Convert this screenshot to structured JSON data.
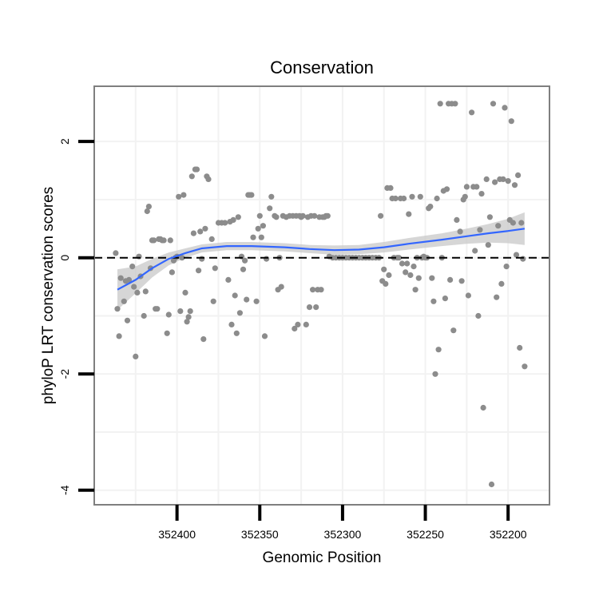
{
  "chart_data": {
    "type": "scatter",
    "title": "Conservation",
    "xlabel": "Genomic Position",
    "ylabel": "phyloP LRT conservation scores",
    "x_reversed": true,
    "xlim": [
      352450,
      352175
    ],
    "ylim": [
      -4.25,
      2.95
    ],
    "x_ticks": [
      352400,
      352350,
      352300,
      352250,
      352200
    ],
    "x_tick_labels": [
      "352400",
      "352350",
      "352300",
      "352250",
      "352200"
    ],
    "y_ticks": [
      2,
      0,
      -2,
      -4
    ],
    "y_tick_labels": [
      "2",
      "0",
      "-2",
      "-4"
    ],
    "reference_line": 0,
    "grid": true,
    "colors": {
      "points": "#8c8c8c",
      "smooth_line": "#3366ff",
      "confidence_band": "#c8c8c8",
      "panel_border": "#7f7f7f",
      "grid": "#f2f2f2"
    },
    "smooth": {
      "x": [
        352436,
        352425,
        352415,
        352405,
        352395,
        352385,
        352370,
        352355,
        352335,
        352320,
        352305,
        352290,
        352275,
        352260,
        352240,
        352225,
        352212,
        352200,
        352190
      ],
      "y": [
        -0.55,
        -0.38,
        -0.18,
        -0.02,
        0.08,
        0.16,
        0.2,
        0.2,
        0.18,
        0.15,
        0.13,
        0.14,
        0.18,
        0.24,
        0.31,
        0.37,
        0.42,
        0.46,
        0.5
      ],
      "upper": [
        -0.2,
        -0.15,
        -0.02,
        0.09,
        0.16,
        0.23,
        0.27,
        0.27,
        0.25,
        0.22,
        0.21,
        0.22,
        0.27,
        0.34,
        0.42,
        0.5,
        0.58,
        0.67,
        0.78
      ],
      "lower": [
        -0.9,
        -0.61,
        -0.34,
        -0.13,
        0.0,
        0.09,
        0.13,
        0.13,
        0.11,
        0.08,
        0.05,
        0.06,
        0.09,
        0.14,
        0.2,
        0.24,
        0.26,
        0.25,
        0.22
      ]
    },
    "points": [
      {
        "x": 352437,
        "y": 0.08
      },
      {
        "x": 352436,
        "y": -0.88
      },
      {
        "x": 352435,
        "y": -1.35
      },
      {
        "x": 352434,
        "y": -0.35
      },
      {
        "x": 352432,
        "y": -0.75
      },
      {
        "x": 352431,
        "y": -0.4
      },
      {
        "x": 352430,
        "y": -1.08
      },
      {
        "x": 352429,
        "y": -0.38
      },
      {
        "x": 352427,
        "y": -0.15
      },
      {
        "x": 352426,
        "y": -0.5
      },
      {
        "x": 352425,
        "y": -1.7
      },
      {
        "x": 352424,
        "y": -0.6
      },
      {
        "x": 352423,
        "y": 0.02
      },
      {
        "x": 352422,
        "y": -0.32
      },
      {
        "x": 352420,
        "y": -1.0
      },
      {
        "x": 352419,
        "y": -0.58
      },
      {
        "x": 352418,
        "y": 0.8
      },
      {
        "x": 352417,
        "y": 0.88
      },
      {
        "x": 352416,
        "y": -0.18
      },
      {
        "x": 352415,
        "y": 0.3
      },
      {
        "x": 352414,
        "y": 0.3
      },
      {
        "x": 352413,
        "y": -0.88
      },
      {
        "x": 352412,
        "y": -0.88
      },
      {
        "x": 352411,
        "y": 0.32
      },
      {
        "x": 352410,
        "y": 0.32
      },
      {
        "x": 352409,
        "y": 0.3
      },
      {
        "x": 352408,
        "y": 0.3
      },
      {
        "x": 352406,
        "y": -1.3
      },
      {
        "x": 352405,
        "y": -0.98
      },
      {
        "x": 352404,
        "y": 0.3
      },
      {
        "x": 352403,
        "y": -0.25
      },
      {
        "x": 352402,
        "y": -0.05
      },
      {
        "x": 352401,
        "y": 0.0
      },
      {
        "x": 352400,
        "y": 0.02
      },
      {
        "x": 352399,
        "y": 1.05
      },
      {
        "x": 352398,
        "y": -0.92
      },
      {
        "x": 352397,
        "y": 0.0
      },
      {
        "x": 352396,
        "y": 1.08
      },
      {
        "x": 352395,
        "y": -0.6
      },
      {
        "x": 352394,
        "y": -1.1
      },
      {
        "x": 352393,
        "y": -1.02
      },
      {
        "x": 352392,
        "y": -0.92
      },
      {
        "x": 352391,
        "y": 1.4
      },
      {
        "x": 352390,
        "y": 0.42
      },
      {
        "x": 352389,
        "y": 1.52
      },
      {
        "x": 352388,
        "y": 1.52
      },
      {
        "x": 352387,
        "y": -0.22
      },
      {
        "x": 352386,
        "y": 0.45
      },
      {
        "x": 352385,
        "y": -0.02
      },
      {
        "x": 352384,
        "y": -1.4
      },
      {
        "x": 352383,
        "y": 0.5
      },
      {
        "x": 352382,
        "y": 1.4
      },
      {
        "x": 352381,
        "y": 1.35
      },
      {
        "x": 352379,
        "y": 0.32
      },
      {
        "x": 352378,
        "y": -0.75
      },
      {
        "x": 352377,
        "y": -0.18
      },
      {
        "x": 352375,
        "y": 0.6
      },
      {
        "x": 352373,
        "y": 0.6
      },
      {
        "x": 352371,
        "y": 0.6
      },
      {
        "x": 352369,
        "y": -0.38
      },
      {
        "x": 352368,
        "y": 0.62
      },
      {
        "x": 352367,
        "y": -1.15
      },
      {
        "x": 352366,
        "y": 0.65
      },
      {
        "x": 352365,
        "y": -0.65
      },
      {
        "x": 352364,
        "y": -1.3
      },
      {
        "x": 352363,
        "y": 0.7
      },
      {
        "x": 352362,
        "y": -0.95
      },
      {
        "x": 352361,
        "y": 0.02
      },
      {
        "x": 352360,
        "y": -0.2
      },
      {
        "x": 352359,
        "y": -0.05
      },
      {
        "x": 352358,
        "y": -0.72
      },
      {
        "x": 352357,
        "y": 1.08
      },
      {
        "x": 352356,
        "y": 1.08
      },
      {
        "x": 352355,
        "y": 1.08
      },
      {
        "x": 352354,
        "y": 0.35
      },
      {
        "x": 352352,
        "y": -0.75
      },
      {
        "x": 352351,
        "y": 0.5
      },
      {
        "x": 352350,
        "y": 0.72
      },
      {
        "x": 352349,
        "y": 0.35
      },
      {
        "x": 352348,
        "y": 0.55
      },
      {
        "x": 352347,
        "y": -1.35
      },
      {
        "x": 352346,
        "y": -0.02
      },
      {
        "x": 352344,
        "y": 0.85
      },
      {
        "x": 352343,
        "y": 1.05
      },
      {
        "x": 352341,
        "y": 0.72
      },
      {
        "x": 352340,
        "y": 0.7
      },
      {
        "x": 352339,
        "y": -0.55
      },
      {
        "x": 352338,
        "y": 0.0
      },
      {
        "x": 352337,
        "y": -0.5
      },
      {
        "x": 352336,
        "y": 0.72
      },
      {
        "x": 352334,
        "y": 0.7
      },
      {
        "x": 352332,
        "y": 0.72
      },
      {
        "x": 352330,
        "y": 0.72
      },
      {
        "x": 352329,
        "y": -1.22
      },
      {
        "x": 352328,
        "y": 0.72
      },
      {
        "x": 352327,
        "y": -1.15
      },
      {
        "x": 352326,
        "y": 0.72
      },
      {
        "x": 352325,
        "y": 0.7
      },
      {
        "x": 352324,
        "y": 0.72
      },
      {
        "x": 352322,
        "y": -1.15
      },
      {
        "x": 352321,
        "y": 0.7
      },
      {
        "x": 352320,
        "y": -0.85
      },
      {
        "x": 352319,
        "y": 0.72
      },
      {
        "x": 352318,
        "y": -0.55
      },
      {
        "x": 352317,
        "y": 0.72
      },
      {
        "x": 352316,
        "y": -0.85
      },
      {
        "x": 352315,
        "y": -0.55
      },
      {
        "x": 352314,
        "y": 0.7
      },
      {
        "x": 352313,
        "y": -0.55
      },
      {
        "x": 352312,
        "y": 0.7
      },
      {
        "x": 352311,
        "y": 0.7
      },
      {
        "x": 352310,
        "y": 0.72
      },
      {
        "x": 352309,
        "y": 0.72
      },
      {
        "x": 352308,
        "y": 0.02
      },
      {
        "x": 352306,
        "y": 0.0
      },
      {
        "x": 352304,
        "y": 0.0
      },
      {
        "x": 352302,
        "y": 0.0
      },
      {
        "x": 352300,
        "y": 0.0
      },
      {
        "x": 352298,
        "y": 0.0
      },
      {
        "x": 352296,
        "y": 0.0
      },
      {
        "x": 352294,
        "y": 0.0
      },
      {
        "x": 352292,
        "y": 0.0
      },
      {
        "x": 352290,
        "y": 0.0
      },
      {
        "x": 352288,
        "y": 0.0
      },
      {
        "x": 352286,
        "y": 0.0
      },
      {
        "x": 352284,
        "y": 0.0
      },
      {
        "x": 352282,
        "y": 0.0
      },
      {
        "x": 352280,
        "y": 0.0
      },
      {
        "x": 352278,
        "y": 0.0
      },
      {
        "x": 352277,
        "y": 0.72
      },
      {
        "x": 352276,
        "y": -0.4
      },
      {
        "x": 352275,
        "y": -0.2
      },
      {
        "x": 352274,
        "y": -0.45
      },
      {
        "x": 352273,
        "y": 1.2
      },
      {
        "x": 352272,
        "y": -0.3
      },
      {
        "x": 352271,
        "y": 1.2
      },
      {
        "x": 352270,
        "y": 1.02
      },
      {
        "x": 352269,
        "y": 0.0
      },
      {
        "x": 352268,
        "y": 1.02
      },
      {
        "x": 352267,
        "y": 0.0
      },
      {
        "x": 352266,
        "y": 0.0
      },
      {
        "x": 352265,
        "y": 1.02
      },
      {
        "x": 352264,
        "y": -0.1
      },
      {
        "x": 352263,
        "y": 1.02
      },
      {
        "x": 352262,
        "y": -0.25
      },
      {
        "x": 352261,
        "y": -0.1
      },
      {
        "x": 352260,
        "y": 0.75
      },
      {
        "x": 352259,
        "y": -0.3
      },
      {
        "x": 352258,
        "y": 1.05
      },
      {
        "x": 352257,
        "y": -0.15
      },
      {
        "x": 352256,
        "y": -0.55
      },
      {
        "x": 352255,
        "y": 0.0
      },
      {
        "x": 352254,
        "y": -0.35
      },
      {
        "x": 352253,
        "y": 1.05
      },
      {
        "x": 352252,
        "y": 0.0
      },
      {
        "x": 352251,
        "y": 0.02
      },
      {
        "x": 352250,
        "y": 0.0
      },
      {
        "x": 352249,
        "y": 0.0
      },
      {
        "x": 352248,
        "y": 0.85
      },
      {
        "x": 352247,
        "y": 0.88
      },
      {
        "x": 352246,
        "y": -0.35
      },
      {
        "x": 352245,
        "y": -0.75
      },
      {
        "x": 352244,
        "y": -2.0
      },
      {
        "x": 352243,
        "y": 1.02
      },
      {
        "x": 352242,
        "y": -1.58
      },
      {
        "x": 352241,
        "y": 2.65
      },
      {
        "x": 352240,
        "y": 0.0
      },
      {
        "x": 352239,
        "y": 1.15
      },
      {
        "x": 352238,
        "y": -0.7
      },
      {
        "x": 352237,
        "y": 1.18
      },
      {
        "x": 352236,
        "y": 2.65
      },
      {
        "x": 352235,
        "y": -0.38
      },
      {
        "x": 352234,
        "y": 2.65
      },
      {
        "x": 352233,
        "y": -1.25
      },
      {
        "x": 352232,
        "y": 2.65
      },
      {
        "x": 352231,
        "y": 0.65
      },
      {
        "x": 352229,
        "y": 0.45
      },
      {
        "x": 352228,
        "y": -0.4
      },
      {
        "x": 352227,
        "y": 1.0
      },
      {
        "x": 352226,
        "y": 1.05
      },
      {
        "x": 352225,
        "y": 1.22
      },
      {
        "x": 352224,
        "y": -0.65
      },
      {
        "x": 352222,
        "y": 2.5
      },
      {
        "x": 352221,
        "y": 1.22
      },
      {
        "x": 352220,
        "y": 0.12
      },
      {
        "x": 352219,
        "y": 1.22
      },
      {
        "x": 352218,
        "y": -1.0
      },
      {
        "x": 352217,
        "y": 0.48
      },
      {
        "x": 352216,
        "y": 1.1
      },
      {
        "x": 352215,
        "y": -2.58
      },
      {
        "x": 352213,
        "y": 1.35
      },
      {
        "x": 352212,
        "y": 0.22
      },
      {
        "x": 352211,
        "y": 0.7
      },
      {
        "x": 352210,
        "y": -3.9
      },
      {
        "x": 352209,
        "y": 2.65
      },
      {
        "x": 352208,
        "y": 1.3
      },
      {
        "x": 352207,
        "y": -0.68
      },
      {
        "x": 352206,
        "y": 0.55
      },
      {
        "x": 352205,
        "y": 1.35
      },
      {
        "x": 352204,
        "y": -0.45
      },
      {
        "x": 352203,
        "y": 1.35
      },
      {
        "x": 352202,
        "y": 2.58
      },
      {
        "x": 352201,
        "y": -0.15
      },
      {
        "x": 352200,
        "y": 1.32
      },
      {
        "x": 352199,
        "y": 0.65
      },
      {
        "x": 352198,
        "y": 2.35
      },
      {
        "x": 352197,
        "y": 0.6
      },
      {
        "x": 352196,
        "y": 1.25
      },
      {
        "x": 352195,
        "y": 0.05
      },
      {
        "x": 352194,
        "y": 1.42
      },
      {
        "x": 352193,
        "y": -1.55
      },
      {
        "x": 352192,
        "y": 0.6
      },
      {
        "x": 352191,
        "y": -0.02
      },
      {
        "x": 352190,
        "y": -1.87
      }
    ]
  }
}
